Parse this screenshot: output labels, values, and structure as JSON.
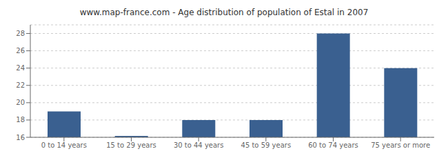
{
  "chart_data": {
    "type": "bar",
    "title": "www.map-france.com - Age distribution of population of Estal in 2007",
    "categories": [
      "0 to 14 years",
      "15 to 29 years",
      "30 to 44 years",
      "45 to 59 years",
      "60 to 74 years",
      "75 years or more"
    ],
    "values": [
      19,
      16.15,
      18,
      18,
      28,
      24
    ],
    "color": "#3a6090",
    "ylim": [
      16,
      29
    ],
    "yticks": [
      16,
      18,
      20,
      22,
      24,
      26,
      28
    ],
    "grid": true
  }
}
